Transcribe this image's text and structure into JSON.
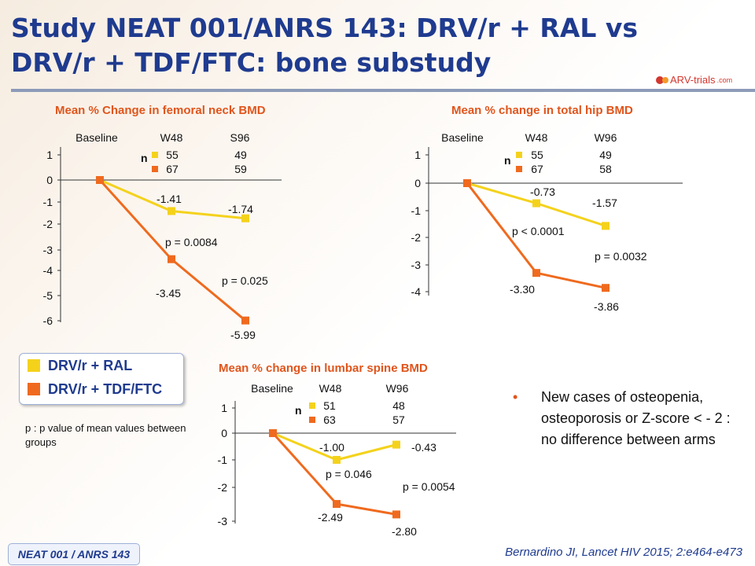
{
  "title": {
    "line1": "Study NEAT 001/ANRS 143: DRV/r + RAL vs",
    "line2": "DRV/r + TDF/FTC: bone substudy"
  },
  "logo": {
    "text": "ARV-trials",
    "suffix": ".com"
  },
  "colors": {
    "ral": "#f4d21c",
    "tdf": "#ef6a1e",
    "title": "#1f3b8f",
    "accent": "#e0551c"
  },
  "legend": [
    {
      "label": "DRV/r + RAL",
      "color": "#f4d21c"
    },
    {
      "label": "DRV/r + TDF/FTC",
      "color": "#ef6a1e"
    }
  ],
  "p_note": "p : p value of mean values between groups",
  "bullet": "New cases of osteopenia, osteoporosis or Z-score < - 2 : no difference between arms",
  "footer_label": "NEAT 001 / ANRS 143",
  "citation": "Bernardino JI, Lancet HIV 2015; 2:e464-e473",
  "chart_data": [
    {
      "type": "line",
      "title": "Mean % Change in femoral neck BMD",
      "x": [
        "Baseline",
        "W48",
        "S96"
      ],
      "y_ticks": [
        1,
        0,
        -1,
        -2,
        -3,
        -4,
        -5,
        -6
      ],
      "ylim": [
        -6,
        1
      ],
      "n_label": "n",
      "n_rows": [
        [
          "55",
          "49"
        ],
        [
          "67",
          "59"
        ]
      ],
      "series": [
        {
          "values": [
            0,
            -1.41,
            -1.74
          ],
          "labels": [
            "",
            "-1.41",
            "-1.74"
          ],
          "color": "#f4d21c"
        },
        {
          "values": [
            0,
            -3.45,
            -5.99
          ],
          "labels": [
            "",
            "-3.45",
            "-5.99"
          ],
          "color": "#ef6a1e"
        }
      ],
      "p_values": [
        "p = 0.0084",
        "p = 0.025"
      ]
    },
    {
      "type": "line",
      "title": "Mean % change in total hip BMD",
      "x": [
        "Baseline",
        "W48",
        "W96"
      ],
      "y_ticks": [
        1,
        0,
        -1,
        -2,
        -3,
        -4
      ],
      "ylim": [
        -4,
        1
      ],
      "n_label": "n",
      "n_rows": [
        [
          "55",
          "49"
        ],
        [
          "67",
          "58"
        ]
      ],
      "series": [
        {
          "values": [
            0,
            -0.73,
            -1.57
          ],
          "labels": [
            "",
            "-0.73",
            "-1.57"
          ],
          "color": "#f4d21c"
        },
        {
          "values": [
            0,
            -3.3,
            -3.86
          ],
          "labels": [
            "",
            "-3.30",
            "-3.86"
          ],
          "color": "#ef6a1e"
        }
      ],
      "p_values": [
        "p < 0.0001",
        "p = 0.0032"
      ]
    },
    {
      "type": "line",
      "title": "Mean % change in  lumbar spine BMD",
      "x": [
        "Baseline",
        "W48",
        "W96"
      ],
      "y_ticks": [
        1,
        0,
        -1,
        -2,
        -3
      ],
      "ylim": [
        -3,
        1
      ],
      "n_label": "n",
      "n_rows": [
        [
          "51",
          "48"
        ],
        [
          "63",
          "57"
        ]
      ],
      "series": [
        {
          "values": [
            0,
            -1.0,
            -0.43
          ],
          "labels": [
            "",
            "-1.00",
            "-0.43"
          ],
          "color": "#f4d21c"
        },
        {
          "values": [
            0,
            -2.49,
            -2.8
          ],
          "labels": [
            "",
            "-2.49",
            "-2.80"
          ],
          "color": "#ef6a1e"
        }
      ],
      "p_values": [
        "p = 0.046",
        "p = 0.0054"
      ]
    }
  ]
}
